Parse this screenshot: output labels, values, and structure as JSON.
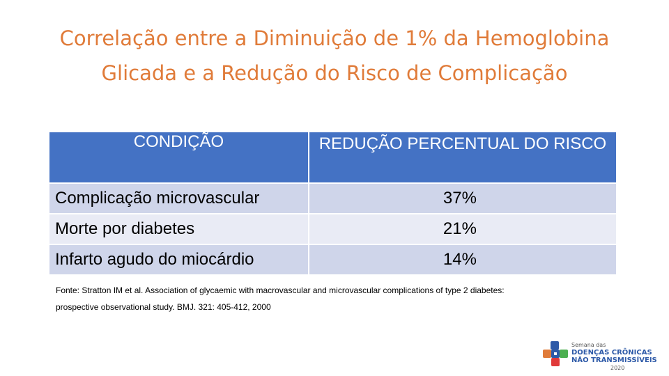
{
  "title": {
    "line1": "Correlação entre a Diminuição de 1% da Hemoglobina",
    "line2": "Glicada e a Redução do Risco de Complicação"
  },
  "table": {
    "headers": [
      "CONDIÇÃO",
      "REDUÇÃO PERCENTUAL DO RISCO"
    ],
    "rows": [
      {
        "condition": "Complicação microvascular",
        "value": "37%"
      },
      {
        "condition": "Morte por diabetes",
        "value": "21%"
      },
      {
        "condition": "Infarto agudo do miocárdio",
        "value": "14%"
      }
    ]
  },
  "source": {
    "line1": "Fonte: Stratton IM et al. Association of glycaemic with macrovascular and microvascular complications of type 2 diabetes:",
    "line2": "prospective observational  study. BMJ. 321: 405-412, 2000"
  },
  "logo": {
    "line1": "Semana das",
    "line2": "DOENÇAS CRÔNICAS",
    "line3": "NÃO TRANSMISSÍVEIS",
    "line4": "2020"
  },
  "colors": {
    "title": "#e07b39",
    "header_bg": "#4472c4",
    "row_dark": "#cfd5ea",
    "row_light": "#e9ebf5"
  }
}
